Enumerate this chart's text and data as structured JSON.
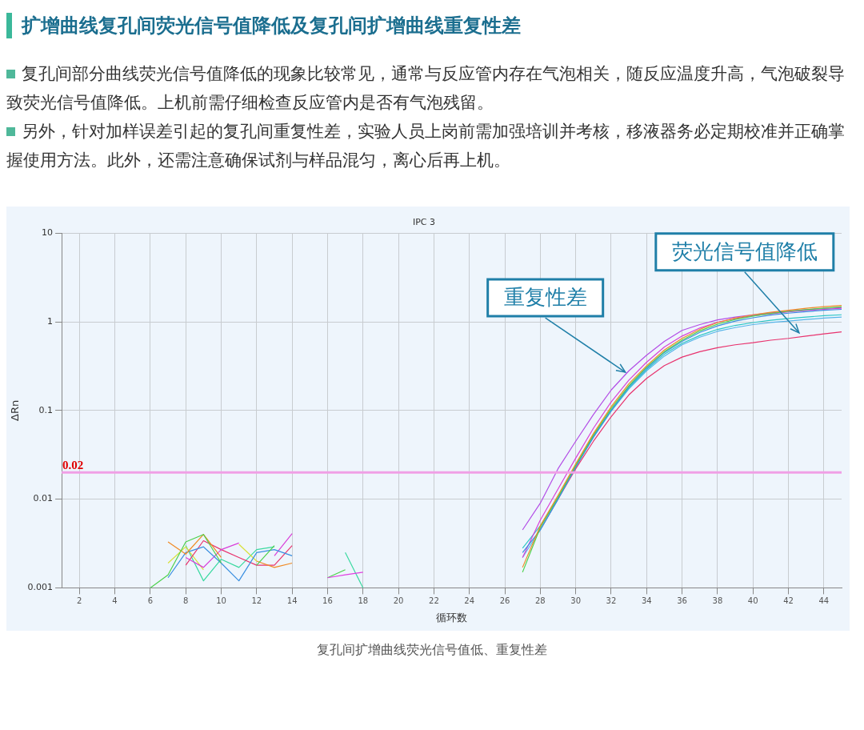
{
  "chart_data": {
    "type": "line",
    "title": "扩增曲线复孔间荧光信号值降低及复孔间扩增曲线重复性差",
    "subtitle": "IPC 3",
    "xlabel": "循环数",
    "ylabel": "ΔRn",
    "annotations": [
      "复孔间部分曲线荧光信号值降低的现象比较常见，通常与反应管内存在气泡相关，随反应温度升高，气泡破裂导致荧光信号值降低。上机前需仔细检查反应管内是否有气泡残留。",
      "另外，针对加样误差引起的复孔间重复性差，实验人员上岗前需加强培训并考核，移液器务必定期校准并正确掌握使用方法。此外，还需注意确保试剂与样品混匀，离心后再上机。",
      {
        "text": "荧光信号值降低",
        "x": 42.6,
        "y": 0.75
      },
      {
        "text": "重复性差",
        "x": 32.8,
        "y": 0.27
      },
      "复孔间扩增曲线荧光信号值低、重复性差"
    ],
    "log": "y",
    "grid": true,
    "legend": false,
    "marker": "none",
    "line_style": "solid",
    "xlim": [
      1,
      45
    ],
    "xticks": [
      2,
      4,
      6,
      8,
      10,
      12,
      14,
      16,
      18,
      20,
      22,
      24,
      26,
      28,
      30,
      32,
      34,
      36,
      38,
      40,
      42,
      44
    ],
    "ylim": [
      0.001,
      10
    ],
    "yticks": [
      0.001,
      0.01,
      0.1,
      1,
      10
    ],
    "ref_lines": [
      {
        "axis": "y",
        "value": 0.02,
        "label": "0.02",
        "color": "#f0a0e6"
      }
    ],
    "series": [
      {
        "color": "#4cd14c",
        "x": [
          6,
          7,
          8,
          9,
          10,
          11,
          12,
          13
        ],
        "values": [
          0.001,
          0.0014,
          0.0033,
          0.004,
          0.0019,
          null,
          0.0018,
          0.003
        ]
      },
      {
        "color": "#f08a24",
        "x": [
          7,
          8,
          9,
          10,
          11,
          12,
          13,
          14
        ],
        "values": [
          0.0033,
          0.0024,
          0.004,
          0.0022,
          null,
          0.002,
          0.0017,
          0.0019
        ]
      },
      {
        "color": "#3a8fe0",
        "x": [
          7,
          8,
          9,
          10,
          11,
          12,
          13,
          14
        ],
        "values": [
          0.0013,
          0.0025,
          0.0029,
          0.0019,
          0.0012,
          0.0025,
          0.0027,
          0.0023
        ]
      },
      {
        "color": "#d93fd9",
        "x": [
          8,
          9,
          10,
          11,
          12,
          13,
          14
        ],
        "values": [
          0.0022,
          0.0017,
          0.0027,
          0.0032,
          null,
          0.0023,
          0.0041
        ]
      },
      {
        "color": "#e8336e",
        "x": [
          8,
          9,
          10,
          11,
          12,
          13,
          14
        ],
        "values": [
          0.0018,
          0.0034,
          0.0027,
          0.0022,
          0.0018,
          0.0018,
          0.003
        ]
      },
      {
        "color": "#d9e03a",
        "x": [
          7,
          8,
          9,
          10,
          11,
          12
        ],
        "values": [
          0.0019,
          0.0029,
          0.0016,
          null,
          0.0031,
          0.002
        ]
      },
      {
        "color": "#3ad9a0",
        "x": [
          8,
          9,
          10,
          11,
          12,
          13
        ],
        "values": [
          0.003,
          0.0012,
          0.0021,
          0.0017,
          0.0027,
          0.0029
        ]
      },
      {
        "color": "#e040e0",
        "x": [
          16,
          17,
          18
        ],
        "values": [
          0.0013,
          0.0014,
          0.0015
        ]
      },
      {
        "color": "#4cd14c",
        "x": [
          16,
          17
        ],
        "values": [
          0.0013,
          0.0016
        ]
      },
      {
        "color": "#3ad9a0",
        "x": [
          17,
          18
        ],
        "values": [
          0.0025,
          0.001
        ]
      },
      {
        "color": "#f08a24",
        "x": [
          27,
          28,
          29,
          30,
          31,
          32,
          33,
          34,
          35,
          36,
          37,
          38,
          39,
          40,
          41,
          42,
          43,
          44,
          45
        ],
        "values": [
          0.0017,
          0.005,
          0.011,
          0.025,
          0.055,
          0.11,
          0.2,
          0.32,
          0.48,
          0.65,
          0.82,
          0.98,
          1.1,
          1.2,
          1.28,
          1.35,
          1.42,
          1.48,
          1.53
        ]
      },
      {
        "color": "#4cd14c",
        "x": [
          27,
          28,
          29,
          30,
          31,
          32,
          33,
          34,
          35,
          36,
          37,
          38,
          39,
          40,
          41,
          42,
          43,
          44,
          45
        ],
        "values": [
          0.0015,
          0.0048,
          0.0105,
          0.024,
          0.053,
          0.105,
          0.19,
          0.31,
          0.46,
          0.62,
          0.79,
          0.94,
          1.06,
          1.16,
          1.24,
          1.31,
          1.37,
          1.42,
          1.47
        ]
      },
      {
        "color": "#3a8fe0",
        "x": [
          27,
          28,
          29,
          30,
          31,
          32,
          33,
          34,
          35,
          36,
          37,
          38,
          39,
          40,
          41,
          42,
          43,
          44,
          45
        ],
        "values": [
          0.0025,
          0.0045,
          0.01,
          0.023,
          0.05,
          0.1,
          0.185,
          0.3,
          0.45,
          0.6,
          0.76,
          0.9,
          1.02,
          1.11,
          1.19,
          1.25,
          1.3,
          1.35,
          1.38
        ]
      },
      {
        "color": "#d93fd9",
        "x": [
          27,
          28,
          29,
          30,
          31,
          32,
          33,
          34,
          35,
          36,
          37,
          38,
          39,
          40,
          41,
          42,
          43,
          44,
          45
        ],
        "values": [
          0.0022,
          0.0058,
          0.013,
          0.029,
          0.063,
          0.125,
          0.22,
          0.35,
          0.52,
          0.69,
          0.85,
          0.99,
          1.09,
          1.17,
          1.23,
          1.29,
          1.34,
          1.38,
          1.42
        ]
      },
      {
        "color": "#2cc6c6",
        "x": [
          27,
          28,
          29,
          30,
          31,
          32,
          33,
          34,
          35,
          36,
          37,
          38,
          39,
          40,
          41,
          42,
          43,
          44,
          45
        ],
        "values": [
          0.0028,
          0.005,
          0.0105,
          0.024,
          0.052,
          0.1,
          0.18,
          0.29,
          0.43,
          0.57,
          0.7,
          0.82,
          0.91,
          0.98,
          1.04,
          1.09,
          1.13,
          1.17,
          1.2
        ]
      },
      {
        "color": "#56b4e9",
        "x": [
          27,
          28,
          29,
          30,
          31,
          32,
          33,
          34,
          35,
          36,
          37,
          38,
          39,
          40,
          41,
          42,
          43,
          44,
          45
        ],
        "values": [
          0.0022,
          0.0045,
          0.01,
          0.023,
          0.05,
          0.098,
          0.175,
          0.28,
          0.41,
          0.55,
          0.67,
          0.78,
          0.86,
          0.93,
          0.98,
          1.02,
          1.06,
          1.1,
          1.13
        ]
      },
      {
        "color": "#b34de6",
        "x": [
          27,
          28,
          29,
          30,
          31,
          32,
          33,
          34,
          35,
          36,
          37,
          38,
          39,
          40,
          41,
          42,
          43,
          44,
          45
        ],
        "values": [
          0.0045,
          0.009,
          0.022,
          0.045,
          0.09,
          0.17,
          0.28,
          0.42,
          0.6,
          0.8,
          0.93,
          1.05,
          1.13,
          1.2,
          1.26,
          1.32,
          1.37,
          1.41,
          1.45
        ]
      },
      {
        "color": "#e8336e",
        "x": [
          28,
          29,
          30,
          31,
          32,
          33,
          34,
          35,
          36,
          37,
          38,
          39,
          40,
          41,
          42,
          43,
          44,
          45
        ],
        "values": [
          0.0045,
          0.01,
          0.022,
          0.045,
          0.085,
          0.15,
          0.23,
          0.32,
          0.4,
          0.46,
          0.51,
          0.55,
          0.58,
          0.62,
          0.65,
          0.69,
          0.73,
          0.77
        ]
      }
    ]
  }
}
